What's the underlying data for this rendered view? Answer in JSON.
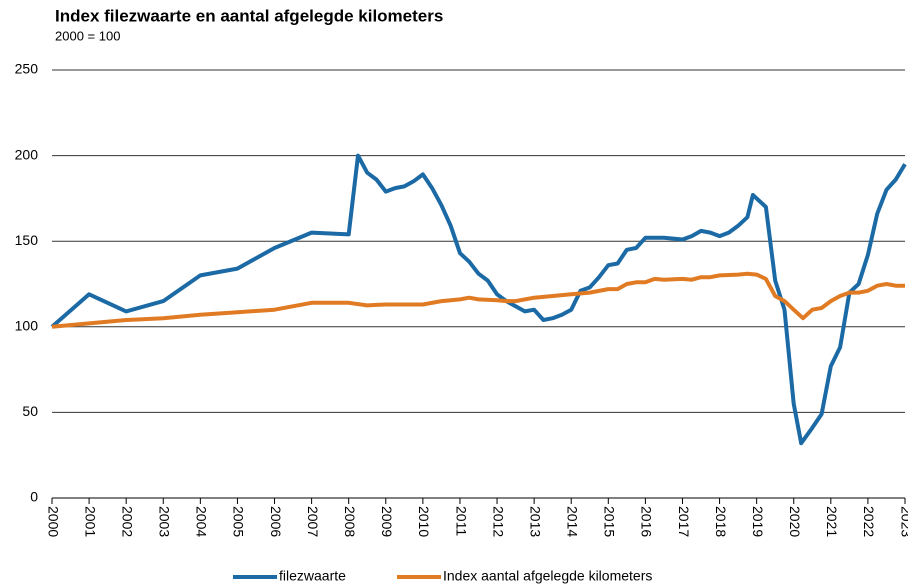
{
  "chart_data": {
    "type": "line",
    "title": "Index filezwaarte en aantal afgelegde kilometers",
    "subtitle": "2000 = 100",
    "xlim": [
      2000,
      2023
    ],
    "xticks": [
      2000,
      2001,
      2002,
      2003,
      2004,
      2005,
      2006,
      2007,
      2008,
      2009,
      2010,
      2011,
      2012,
      2013,
      2014,
      2015,
      2016,
      2017,
      2018,
      2019,
      2020,
      2021,
      2022,
      2023
    ],
    "ylim": [
      0,
      250
    ],
    "yticks": [
      0,
      50,
      100,
      150,
      200,
      250
    ],
    "grid": true,
    "legend": "bottom",
    "series": [
      {
        "name": "filezwaarte",
        "color": "#1b6aa5",
        "x": [
          2000,
          2001,
          2002,
          2003,
          2004,
          2005,
          2006,
          2007,
          2008,
          2008.25,
          2008.5,
          2008.75,
          2009,
          2009.25,
          2009.5,
          2009.75,
          2010,
          2010.25,
          2010.5,
          2010.75,
          2011,
          2011.25,
          2011.5,
          2011.75,
          2012,
          2012.25,
          2012.5,
          2012.75,
          2013,
          2013.25,
          2013.5,
          2013.75,
          2014,
          2014.25,
          2014.5,
          2014.75,
          2015,
          2015.25,
          2015.5,
          2015.75,
          2016,
          2016.25,
          2016.5,
          2016.75,
          2017,
          2017.25,
          2017.5,
          2017.75,
          2018,
          2018.25,
          2018.5,
          2018.75,
          2018.9,
          2019.25,
          2019.5,
          2019.75,
          2020,
          2020.2,
          2020.5,
          2020.75,
          2021,
          2021.25,
          2021.5,
          2021.75,
          2022,
          2022.25,
          2022.5,
          2022.75,
          2023
        ],
        "values": [
          100,
          119,
          109,
          115,
          130,
          134,
          146,
          155,
          154,
          200,
          190,
          186,
          179,
          181,
          182,
          185,
          189,
          181,
          171,
          159,
          143,
          138,
          131,
          127,
          119,
          115,
          112,
          109,
          110,
          104,
          105,
          107,
          110,
          121,
          123,
          129,
          136,
          137,
          145,
          146,
          152,
          152,
          152,
          151.5,
          151,
          153,
          156,
          155,
          153,
          155,
          159,
          164,
          177,
          170,
          127,
          110,
          55,
          32,
          41,
          49,
          77,
          88,
          120,
          125,
          142,
          166,
          180,
          186,
          195
        ]
      },
      {
        "name": "Index aantal afgelegde kilometers",
        "color": "#e07b24",
        "x": [
          2000,
          2001,
          2002,
          2003,
          2004,
          2005,
          2006,
          2007,
          2008,
          2008.5,
          2009,
          2010,
          2010.5,
          2011,
          2011.25,
          2011.5,
          2012,
          2012.25,
          2012.5,
          2013,
          2013.5,
          2014,
          2014.5,
          2015,
          2015.25,
          2015.5,
          2015.75,
          2016,
          2016.25,
          2016.5,
          2017,
          2017.25,
          2017.5,
          2017.75,
          2018,
          2018.5,
          2018.75,
          2019,
          2019.25,
          2019.5,
          2019.75,
          2020,
          2020.25,
          2020.5,
          2020.75,
          2021,
          2021.25,
          2021.5,
          2021.75,
          2022,
          2022.25,
          2022.5,
          2022.75,
          2023
        ],
        "values": [
          100,
          102,
          104,
          105,
          107,
          108.5,
          110,
          114,
          114,
          112.5,
          113,
          113,
          115,
          116,
          117,
          116,
          115.5,
          115,
          115,
          117,
          118,
          119,
          120,
          122,
          122,
          125,
          126,
          126,
          128,
          127.5,
          128,
          127.5,
          129,
          129,
          130,
          130.5,
          131,
          130.5,
          128,
          118,
          115,
          110,
          105,
          110,
          111,
          115,
          118,
          120,
          120,
          121,
          124,
          125,
          124,
          124
        ]
      }
    ]
  }
}
